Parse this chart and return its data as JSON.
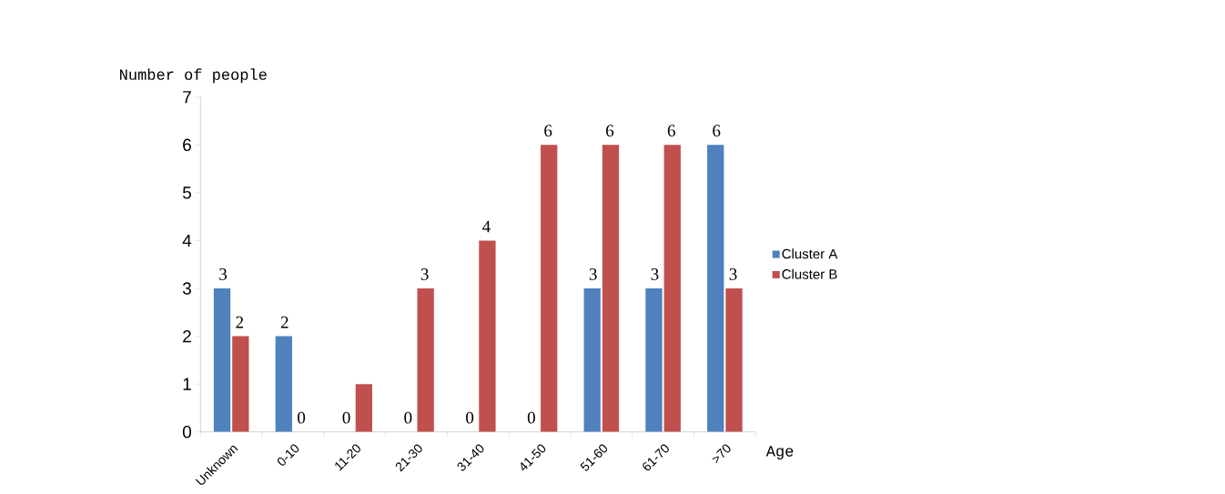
{
  "chart_data": {
    "type": "bar",
    "xlabel": "Age",
    "ylabel": "Number of people",
    "categories": [
      "Unknown",
      "0-10",
      "11-20",
      "21-30",
      "31-40",
      "41-50",
      "51-60",
      "61-70",
      ">70"
    ],
    "series": [
      {
        "name": "Cluster A",
        "color": "#4f81bd",
        "values": [
          3,
          2,
          0,
          0,
          0,
          0,
          3,
          3,
          6
        ],
        "value_labels": [
          "3",
          "2",
          "0",
          "0",
          "0",
          "0",
          "3",
          "3",
          "6"
        ]
      },
      {
        "name": "Cluster B",
        "color": "#c0504d",
        "values": [
          2,
          0,
          1,
          3,
          4,
          6,
          6,
          6,
          3
        ],
        "value_labels": [
          "2",
          "0",
          null,
          "3",
          "4",
          "6",
          "6",
          "6",
          "3"
        ]
      }
    ],
    "ylim": [
      0,
      7
    ],
    "yticks": [
      0,
      1,
      2,
      3,
      4,
      5,
      6,
      7
    ],
    "legend": "right"
  }
}
